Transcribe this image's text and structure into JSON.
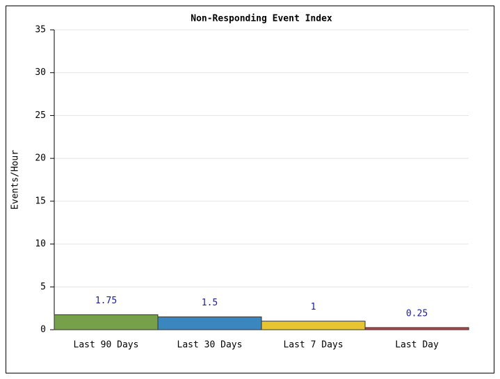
{
  "chart_data": {
    "type": "bar",
    "title": "Non-Responding Event Index",
    "y_label": "Events/Hour",
    "categories": [
      "Last 90 Days",
      "Last 30 Days",
      "Last 7 Days",
      "Last Day"
    ],
    "values": [
      1.75,
      1.5,
      1,
      0.25
    ],
    "colors": [
      "#77a04a",
      "#3a87bf",
      "#e6c531",
      "#c84040"
    ],
    "ylim": [
      0,
      35
    ],
    "yticks": [
      0,
      5,
      10,
      15,
      20,
      25,
      30,
      35
    ],
    "grid": true
  }
}
